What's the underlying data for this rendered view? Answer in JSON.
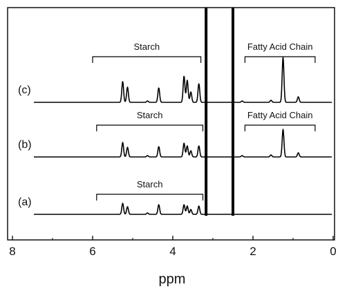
{
  "chart_data": {
    "type": "line",
    "title": "",
    "xlabel": "ppm",
    "ylabel": "",
    "xlim": [
      8,
      0
    ],
    "x_reversed": true,
    "x_ticks": [
      {
        "value": 8,
        "label": "8"
      },
      {
        "value": 6,
        "label": "6"
      },
      {
        "value": 4,
        "label": "4"
      },
      {
        "value": 2,
        "label": "2"
      },
      {
        "value": 0,
        "label": "0"
      }
    ],
    "grid": false,
    "legend": "none",
    "line_color": "#000000",
    "series": [
      {
        "name": "(a)",
        "peaks": [
          {
            "ppm": 5.25,
            "height": 0.16
          },
          {
            "ppm": 5.13,
            "height": 0.11
          },
          {
            "ppm": 4.63,
            "height": 0.02
          },
          {
            "ppm": 4.35,
            "height": 0.14
          },
          {
            "ppm": 3.72,
            "height": 0.14
          },
          {
            "ppm": 3.64,
            "height": 0.12
          },
          {
            "ppm": 3.55,
            "height": 0.07
          },
          {
            "ppm": 3.35,
            "height": 0.12
          }
        ]
      },
      {
        "name": "(b)",
        "peaks": [
          {
            "ppm": 5.25,
            "height": 0.21
          },
          {
            "ppm": 5.13,
            "height": 0.14
          },
          {
            "ppm": 4.63,
            "height": 0.02
          },
          {
            "ppm": 4.35,
            "height": 0.15
          },
          {
            "ppm": 3.72,
            "height": 0.2
          },
          {
            "ppm": 3.64,
            "height": 0.16
          },
          {
            "ppm": 3.55,
            "height": 0.09
          },
          {
            "ppm": 3.35,
            "height": 0.16
          },
          {
            "ppm": 2.27,
            "height": 0.02
          },
          {
            "ppm": 1.55,
            "height": 0.03
          },
          {
            "ppm": 1.25,
            "height": 0.4
          },
          {
            "ppm": 0.87,
            "height": 0.06
          }
        ]
      },
      {
        "name": "(c)",
        "peaks": [
          {
            "ppm": 5.25,
            "height": 0.3
          },
          {
            "ppm": 5.13,
            "height": 0.22
          },
          {
            "ppm": 4.63,
            "height": 0.02
          },
          {
            "ppm": 4.35,
            "height": 0.21
          },
          {
            "ppm": 3.72,
            "height": 0.38
          },
          {
            "ppm": 3.64,
            "height": 0.32
          },
          {
            "ppm": 3.55,
            "height": 0.15
          },
          {
            "ppm": 3.35,
            "height": 0.27
          },
          {
            "ppm": 2.27,
            "height": 0.02
          },
          {
            "ppm": 1.55,
            "height": 0.03
          },
          {
            "ppm": 1.25,
            "height": 0.65
          },
          {
            "ppm": 0.87,
            "height": 0.08
          }
        ]
      }
    ],
    "solvent_peaks_off_scale": [
      3.17,
      2.5
    ],
    "annotations": [
      {
        "label": "Starch",
        "trace": "(c)",
        "from_ppm": 6.0,
        "to_ppm": 3.3
      },
      {
        "label": "Fatty Acid Chain",
        "trace": "(c)",
        "from_ppm": 2.2,
        "to_ppm": 0.45
      },
      {
        "label": "Starch",
        "trace": "(b)",
        "from_ppm": 5.9,
        "to_ppm": 3.25
      },
      {
        "label": "Fatty Acid Chain",
        "trace": "(b)",
        "from_ppm": 2.2,
        "to_ppm": 0.45
      },
      {
        "label": "Starch",
        "trace": "(a)",
        "from_ppm": 5.9,
        "to_ppm": 3.25
      }
    ]
  }
}
